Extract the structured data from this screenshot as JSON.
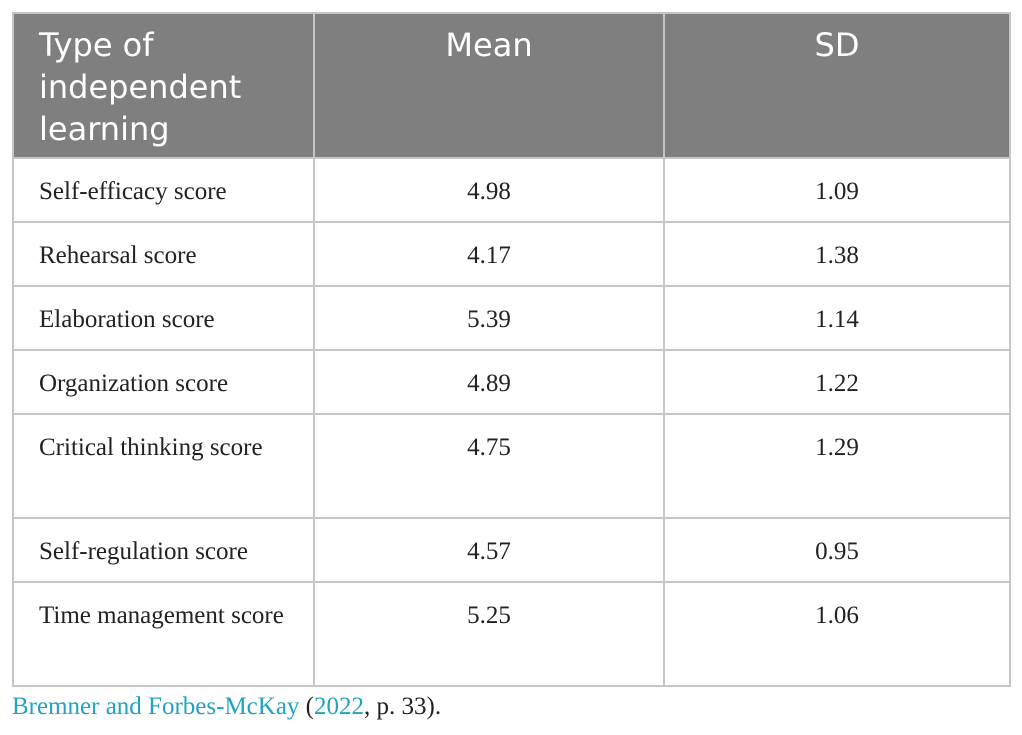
{
  "table": {
    "headers": [
      "Type of independent learning",
      "Mean",
      "SD"
    ],
    "rows": [
      {
        "type": "Self-efficacy score",
        "mean": "4.98",
        "sd": "1.09"
      },
      {
        "type": "Rehearsal score",
        "mean": "4.17",
        "sd": "1.38"
      },
      {
        "type": "Elaboration score",
        "mean": "5.39",
        "sd": "1.14"
      },
      {
        "type": "Organization score",
        "mean": "4.89",
        "sd": "1.22"
      },
      {
        "type": "Critical thinking score",
        "mean": "4.75",
        "sd": "1.29"
      },
      {
        "type": "Self-regulation score",
        "mean": "4.57",
        "sd": "0.95"
      },
      {
        "type": "Time management score",
        "mean": "5.25",
        "sd": "1.06"
      }
    ]
  },
  "caption": {
    "authors": "Bremner and Forbes-McKay",
    "open_paren": " (",
    "year": "2022",
    "page": ", p. 33)."
  },
  "colors": {
    "header_bg": "#7f7f7f",
    "header_text": "#ffffff",
    "border": "#c6c6c6",
    "link": "#1fa3c0"
  }
}
